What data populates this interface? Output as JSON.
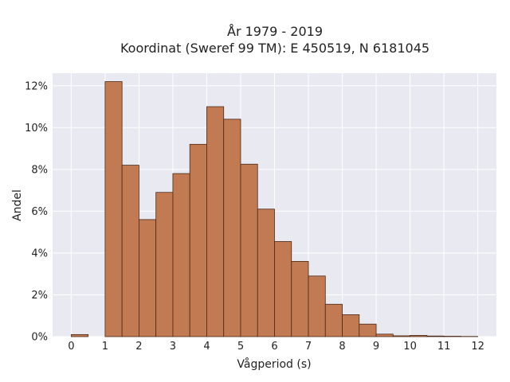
{
  "chart_data": {
    "type": "bar",
    "title_lines": [
      "År 1979 - 2019",
      "Koordinat (Sweref 99 TM): E 450519, N 6181045"
    ],
    "xlabel": "Vågperiod (s)",
    "ylabel": "Andel",
    "x_ticks": [
      0,
      1,
      2,
      3,
      4,
      5,
      6,
      7,
      8,
      9,
      10,
      11,
      12
    ],
    "x_tick_labels": [
      "0",
      "1",
      "2",
      "3",
      "4",
      "5",
      "6",
      "7",
      "8",
      "9",
      "10",
      "11",
      "12"
    ],
    "y_ticks": [
      0,
      2,
      4,
      6,
      8,
      10,
      12
    ],
    "y_tick_labels": [
      "0%",
      "2%",
      "4%",
      "6%",
      "8%",
      "10%",
      "12%"
    ],
    "xlim": [
      -0.55,
      12.55
    ],
    "ylim": [
      0,
      12.6
    ],
    "bin_width": 0.5,
    "bin_starts": [
      0,
      0.5,
      1,
      1.5,
      2,
      2.5,
      3,
      3.5,
      4,
      4.5,
      5,
      5.5,
      6,
      6.5,
      7,
      7.5,
      8,
      8.5,
      9,
      9.5,
      10,
      10.5,
      11,
      11.5
    ],
    "values": [
      0.1,
      0,
      12.2,
      8.2,
      5.6,
      6.9,
      7.8,
      9.2,
      11.0,
      10.4,
      8.25,
      6.1,
      4.55,
      3.6,
      2.9,
      1.55,
      1.05,
      0.6,
      0.12,
      0.04,
      0.06,
      0.03,
      0.02,
      0.01
    ],
    "grid": true,
    "colors": {
      "bar": "#c17a52",
      "bar_edge": "#4a2a18",
      "plot_bg": "#e9e9f2",
      "grid": "#ffffff"
    }
  }
}
